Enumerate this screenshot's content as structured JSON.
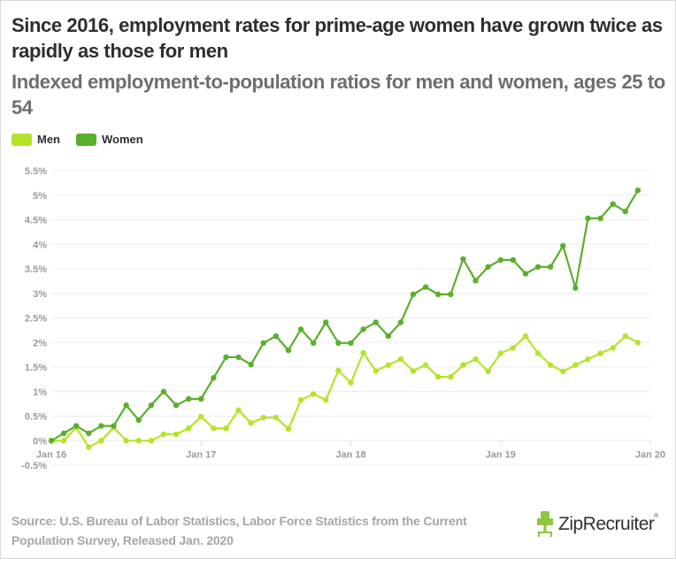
{
  "header": {
    "title": "Since 2016, employment rates for prime-age women have grown twice as rapidly as those for men",
    "subtitle": "Indexed employment-to-population ratios for men and women, ages 25 to 54"
  },
  "legend": [
    {
      "label": "Men",
      "color": "#b4e42a"
    },
    {
      "label": "Women",
      "color": "#5aaf2b"
    }
  ],
  "footer": {
    "source": "Source: U.S. Bureau of Labor Statistics, Labor Force Statistics from the Current Population Survey, Released Jan. 2020",
    "logo_text": "ZipRecruiter",
    "logo_mark": "®",
    "logo_color": "#8dc63f"
  },
  "chart_data": {
    "type": "line",
    "title": "Since 2016, employment rates for prime-age women have grown twice as rapidly as those for men",
    "subtitle": "Indexed employment-to-population ratios for men and women, ages 25 to 54",
    "xlabel": "",
    "ylabel": "",
    "x_start": "Jan 16",
    "x_interval": "monthly",
    "x_ticks": [
      "Jan 16",
      "Jan 17",
      "Jan 18",
      "Jan 19",
      "Jan 20"
    ],
    "x_tick_months": [
      0,
      12,
      24,
      36,
      48
    ],
    "xlim_months": [
      0,
      48
    ],
    "y_ticks": [
      "-0.5%",
      "0%",
      "0.5%",
      "1%",
      "1.5%",
      "2%",
      "2.5%",
      "3%",
      "3.5%",
      "4%",
      "4.5%",
      "5%",
      "5.5%"
    ],
    "y_tick_values": [
      -0.5,
      0,
      0.5,
      1,
      1.5,
      2,
      2.5,
      3,
      3.5,
      4,
      4.5,
      5,
      5.5
    ],
    "ylim": [
      -0.5,
      5.5
    ],
    "grid": true,
    "legend_position": "top-left",
    "series": [
      {
        "name": "Men",
        "color": "#b4e42a",
        "values": [
          0,
          0,
          0.27,
          -0.13,
          0,
          0.27,
          0,
          0,
          0,
          0.13,
          0.13,
          0.25,
          0.49,
          0.25,
          0.25,
          0.62,
          0.36,
          0.47,
          0.47,
          0.24,
          0.83,
          0.95,
          0.83,
          1.43,
          1.18,
          1.79,
          1.42,
          1.54,
          1.66,
          1.42,
          1.54,
          1.3,
          1.3,
          1.54,
          1.66,
          1.41,
          1.78,
          1.89,
          2.13,
          1.78,
          1.54,
          1.41,
          1.54,
          1.66,
          1.78,
          1.89,
          2.13,
          2.0
        ]
      },
      {
        "name": "Women",
        "color": "#5aaf2b",
        "values": [
          0,
          0.15,
          0.3,
          0.15,
          0.3,
          0.3,
          0.72,
          0.42,
          0.72,
          1.0,
          0.72,
          0.85,
          0.85,
          1.28,
          1.7,
          1.7,
          1.55,
          1.99,
          2.13,
          1.84,
          2.27,
          1.99,
          2.41,
          1.99,
          1.99,
          2.27,
          2.41,
          2.13,
          2.41,
          2.98,
          3.13,
          2.98,
          2.98,
          3.7,
          3.26,
          3.54,
          3.68,
          3.68,
          3.4,
          3.54,
          3.54,
          3.97,
          3.11,
          4.53,
          4.53,
          4.82,
          4.67,
          5.1
        ]
      }
    ]
  }
}
